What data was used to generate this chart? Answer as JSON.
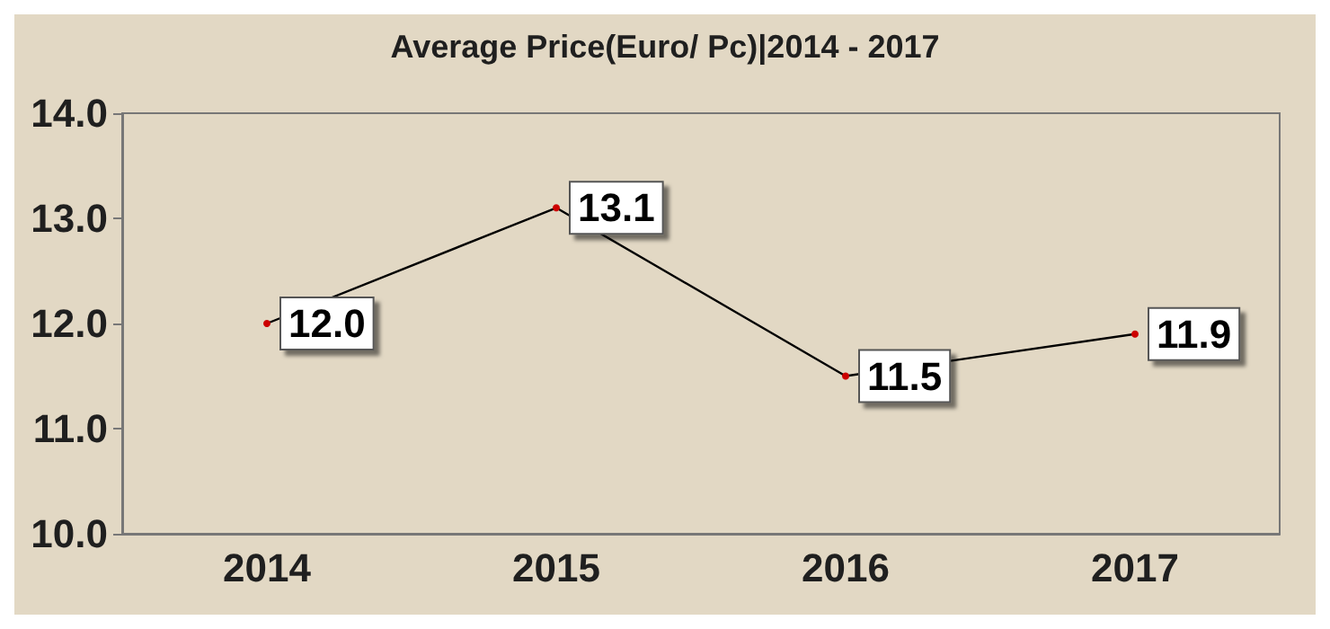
{
  "chart_data": {
    "type": "line",
    "title": "Average Price(Euro/ Pc)|2014 - 2017",
    "categories": [
      "2014",
      "2015",
      "2016",
      "2017"
    ],
    "series": [
      {
        "color": "#000000",
        "values": [
          12.0,
          13.1,
          11.5,
          11.9
        ],
        "value_labels": [
          "12.0",
          "13.1",
          "11.5",
          "11.9"
        ]
      }
    ],
    "ylim": [
      10,
      14
    ],
    "yticks": [
      {
        "value": 10,
        "label": "10.0"
      },
      {
        "value": 11,
        "label": "11.0"
      },
      {
        "value": 12,
        "label": "12.0"
      },
      {
        "value": 13,
        "label": "13.0"
      },
      {
        "value": 14,
        "label": "14.0"
      }
    ],
    "grid": false,
    "marker": "circle"
  }
}
